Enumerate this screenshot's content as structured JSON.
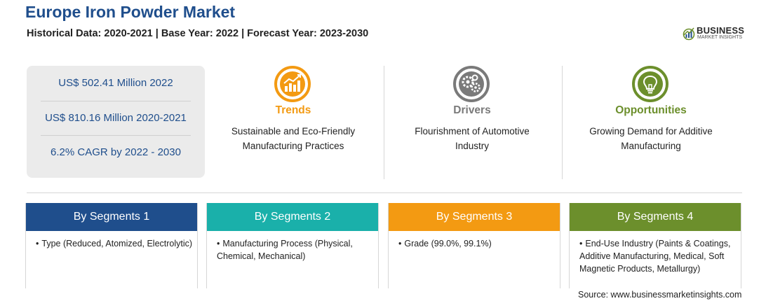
{
  "header": {
    "title": "Europe Iron Powder Market",
    "subtitle": "Historical Data: 2020-2021 | Base Year: 2022 | Forecast Year: 2023-2030"
  },
  "logo": {
    "main": "BUSINESS",
    "sub": "MARKET INSIGHTS"
  },
  "stats": [
    "US$ 502.41 Million 2022",
    "US$ 810.16 Million 2020-2021",
    "6.2% CAGR by 2022 - 2030"
  ],
  "highlights": {
    "trends": {
      "title": "Trends",
      "text": "Sustainable and Eco-Friendly Manufacturing Practices",
      "icon": "chart-up-icon",
      "color": "#f39a12"
    },
    "drivers": {
      "title": "Drivers",
      "text": "Flourishment of Automotive Industry",
      "icon": "gears-icon",
      "color": "#7a7a7a"
    },
    "opportunities": {
      "title": "Opportunities",
      "text": "Growing Demand for Additive Manufacturing",
      "icon": "lightbulb-icon",
      "color": "#6c8f2c"
    }
  },
  "segments": [
    {
      "title": "By Segments 1",
      "bullet": "•",
      "item": "Type (Reduced, Atomized, Electrolytic)",
      "color": "#1f4e8c"
    },
    {
      "title": "By Segments 2",
      "bullet": "•",
      "item": "Manufacturing Process (Physical, Chemical, Mechanical)",
      "color": "#1ab0aa"
    },
    {
      "title": "By Segments 3",
      "bullet": "•",
      "item": "Grade (99.0%, 99.1%)",
      "color": "#f39a12"
    },
    {
      "title": "By Segments 4",
      "bullet": "•",
      "item": "End-Use Industry (Paints & Coatings, Additive Manufacturing, Medical, Soft Magnetic Products, Metallurgy)",
      "color": "#6c8f2c"
    }
  ],
  "source": "Source: www.businessmarketinsights.com"
}
